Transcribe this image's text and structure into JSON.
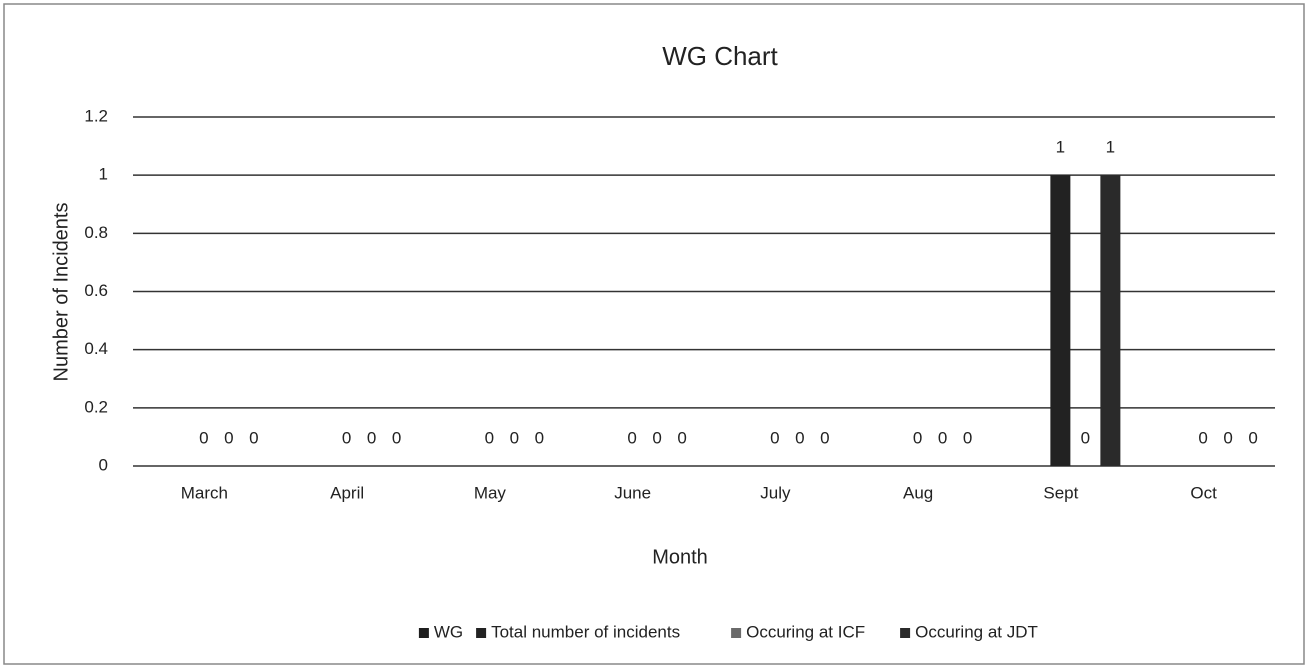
{
  "chart_data": {
    "type": "bar",
    "title": "WG Chart",
    "x_label": "Month",
    "y_label": "Number of Incidents",
    "categories": [
      "March",
      "April",
      "May",
      "June",
      "July",
      "Aug",
      "Sept",
      "Oct"
    ],
    "series": [
      {
        "name": "WG",
        "color": "#1e1e1e",
        "values": [
          null,
          null,
          null,
          null,
          null,
          null,
          null,
          null
        ]
      },
      {
        "name": "Total number of incidents",
        "color": "#222222",
        "values": [
          0,
          0,
          0,
          0,
          0,
          0,
          1,
          0
        ]
      },
      {
        "name": "Occuring at ICF",
        "color": "#6a6a6a",
        "values": [
          0,
          0,
          0,
          0,
          0,
          0,
          0,
          0
        ]
      },
      {
        "name": "Occuring at JDT",
        "color": "#2a2a2a",
        "values": [
          0,
          0,
          0,
          0,
          0,
          0,
          1,
          0
        ]
      }
    ],
    "ylim": [
      0,
      1.2
    ],
    "yticks": [
      0,
      0.2,
      0.4,
      0.6,
      0.8,
      1,
      1.2
    ],
    "grid": true,
    "legend": "bottom"
  }
}
